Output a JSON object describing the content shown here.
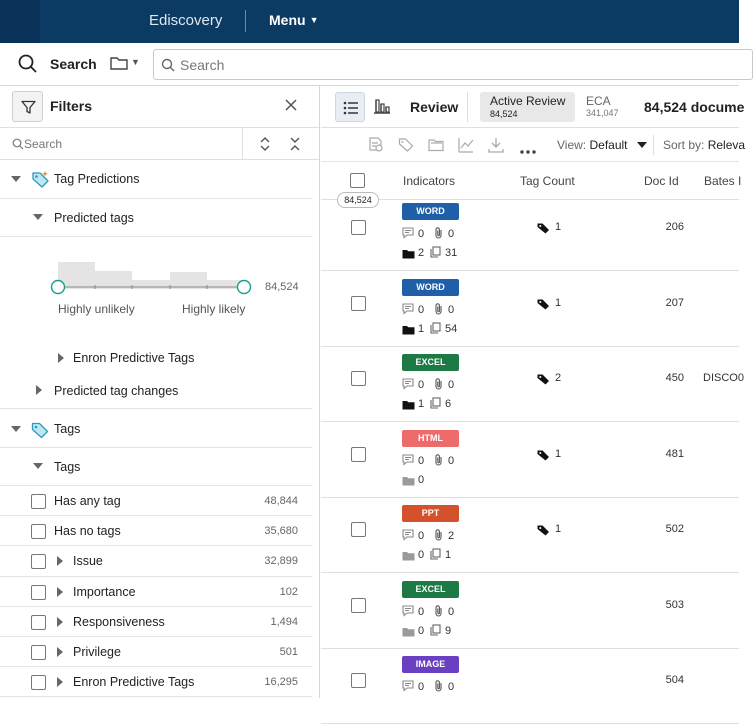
{
  "topbar": {
    "app_name": "Ediscovery",
    "menu_label": "Menu"
  },
  "search": {
    "label": "Search",
    "placeholder": "Search"
  },
  "filters": {
    "title": "Filters",
    "search_placeholder": "Search",
    "tag_predictions_label": "Tag Predictions",
    "predicted_tags_label": "Predicted tags",
    "slider_min_label": "Highly unlikely",
    "slider_max_label": "Highly likely",
    "slider_count": "84,524",
    "enron_predictive_label": "Enron Predictive Tags",
    "predicted_tag_changes_label": "Predicted tag changes",
    "tags_group_label": "Tags",
    "tags_sub_label": "Tags",
    "tag_items": [
      {
        "label": "Has any tag",
        "count": "48,844",
        "expandable": false
      },
      {
        "label": "Has no tags",
        "count": "35,680",
        "expandable": false
      },
      {
        "label": "Issue",
        "count": "32,899",
        "expandable": true
      },
      {
        "label": "Importance",
        "count": "102",
        "expandable": true
      },
      {
        "label": "Responsiveness",
        "count": "1,494",
        "expandable": true
      },
      {
        "label": "Privilege",
        "count": "501",
        "expandable": true
      },
      {
        "label": "Enron Predictive Tags",
        "count": "16,295",
        "expandable": true
      }
    ]
  },
  "review": {
    "review_label": "Review",
    "active_review_label": "Active Review",
    "active_review_count": "84,524",
    "eca_label": "ECA",
    "eca_count": "341,047",
    "doc_count_label": "84,524 docume",
    "view_label": "View:",
    "view_value": "Default",
    "sort_label": "Sort by:",
    "sort_value": "Releva"
  },
  "table": {
    "headers": {
      "indicators": "Indicators",
      "tag_count": "Tag Count",
      "doc_id": "Doc Id",
      "bates": "Bates I"
    },
    "count_pill": "84,524",
    "rows": [
      {
        "type": "WORD",
        "color": "#1f5fa8",
        "comments": "0",
        "attachments": "0",
        "folder_icon": "folder-icon",
        "folder": "2",
        "pages": "31",
        "tag_count": "1",
        "doc_id": "206",
        "bates": ""
      },
      {
        "type": "WORD",
        "color": "#1f5fa8",
        "comments": "0",
        "attachments": "0",
        "folder_icon": "folder-icon",
        "folder": "1",
        "pages": "54",
        "tag_count": "1",
        "doc_id": "207",
        "bates": ""
      },
      {
        "type": "EXCEL",
        "color": "#1e7a45",
        "comments": "0",
        "attachments": "0",
        "folder_icon": "folder-icon",
        "folder": "1",
        "pages": "6",
        "tag_count": "2",
        "doc_id": "450",
        "bates": "DISCO0"
      },
      {
        "type": "HTML",
        "color": "#ee6b6b",
        "comments": "0",
        "attachments": "0",
        "folder_icon": "folder-muted-icon",
        "folder": "0",
        "pages": "",
        "tag_count": "1",
        "doc_id": "481",
        "bates": ""
      },
      {
        "type": "PPT",
        "color": "#d4512c",
        "comments": "0",
        "attachments": "2",
        "folder_icon": "folder-muted-icon",
        "folder": "0",
        "pages": "1",
        "tag_count": "1",
        "doc_id": "502",
        "bates": ""
      },
      {
        "type": "EXCEL",
        "color": "#1e7a45",
        "comments": "0",
        "attachments": "0",
        "folder_icon": "folder-muted-icon",
        "folder": "0",
        "pages": "9",
        "tag_count": "",
        "doc_id": "503",
        "bates": ""
      },
      {
        "type": "IMAGE",
        "color": "#6a3fc2",
        "comments": "0",
        "attachments": "0",
        "folder_icon": "",
        "folder": "",
        "pages": "",
        "tag_count": "",
        "doc_id": "504",
        "bates": ""
      }
    ]
  }
}
